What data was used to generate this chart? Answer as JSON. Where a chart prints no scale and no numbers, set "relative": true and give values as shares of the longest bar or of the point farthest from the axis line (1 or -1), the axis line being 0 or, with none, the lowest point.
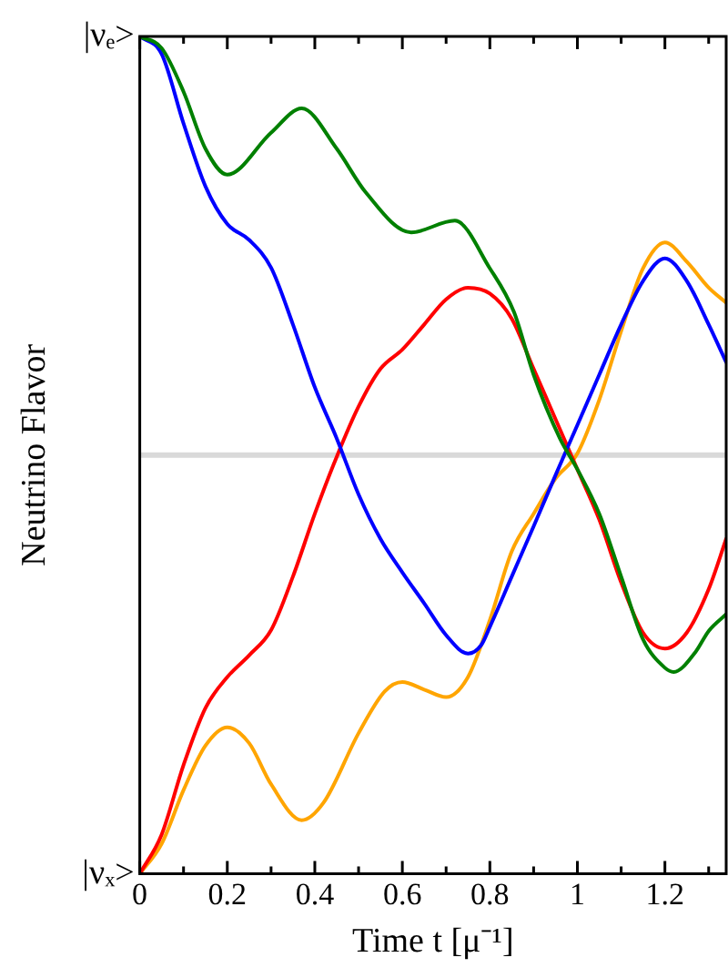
{
  "chart_data": {
    "type": "line",
    "xlabel": "Time t [μ⁻¹]",
    "ylabel": "Neutrino Flavor",
    "xlim": [
      0,
      1.34
    ],
    "relative": true,
    "annotations": [
      {
        "text": "|νₑ>",
        "x": 0,
        "y": 1
      },
      {
        "text": "|νₓ>",
        "x": 0,
        "y": 0
      }
    ],
    "xticks": [
      0,
      {
        "value": 0.1,
        "label": null
      },
      0.2,
      {
        "value": 0.3,
        "label": null
      },
      0.4,
      {
        "value": 0.5,
        "label": null
      },
      0.6,
      {
        "value": 0.7,
        "label": null
      },
      0.8,
      {
        "value": 0.9,
        "label": null
      },
      1,
      {
        "value": 1.1,
        "label": null
      },
      1.2,
      {
        "value": 1.3,
        "label": null
      }
    ],
    "grid": false,
    "legend": false,
    "marker": "none",
    "line_style": "solid",
    "ref_lines": [
      {
        "axis": "y",
        "value": 0.5,
        "color": "#d9d9d9"
      }
    ],
    "series": [
      {
        "color": "#008000",
        "x": [
          0,
          0.05,
          0.1,
          0.15,
          0.2,
          0.3,
          0.37,
          0.45,
          0.516,
          0.62,
          0.72,
          0.8,
          0.855,
          0.9,
          0.96,
          1.0,
          1.05,
          1.1,
          1.15,
          1.2,
          1.22,
          1.27,
          1.3,
          1.34
        ],
        "values": [
          1,
          0.986,
          0.934,
          0.866,
          0.835,
          0.885,
          0.914,
          0.866,
          0.814,
          0.766,
          0.78,
          0.723,
          0.671,
          0.596,
          0.52,
          0.483,
          0.43,
          0.355,
          0.28,
          0.246,
          0.241,
          0.265,
          0.29,
          0.31
        ]
      },
      {
        "color": "#0000ff",
        "x": [
          0,
          0.05,
          0.1,
          0.15,
          0.2,
          0.25,
          0.3,
          0.35,
          0.4,
          0.45,
          0.5,
          0.55,
          0.6,
          0.65,
          0.7,
          0.75,
          0.78,
          0.8,
          0.85,
          0.9,
          0.95,
          1.0,
          1.05,
          1.1,
          1.15,
          1.2,
          1.25,
          1.3,
          1.34
        ],
        "values": [
          1,
          0.979,
          0.896,
          0.821,
          0.776,
          0.757,
          0.724,
          0.656,
          0.581,
          0.52,
          0.453,
          0.4,
          0.36,
          0.323,
          0.285,
          0.263,
          0.273,
          0.295,
          0.355,
          0.415,
          0.476,
          0.536,
          0.596,
          0.656,
          0.708,
          0.735,
          0.708,
          0.656,
          0.611
        ]
      },
      {
        "color": "#ff0000",
        "x": [
          0,
          0.05,
          0.1,
          0.15,
          0.2,
          0.25,
          0.3,
          0.35,
          0.4,
          0.45,
          0.5,
          0.55,
          0.6,
          0.65,
          0.7,
          0.75,
          0.8,
          0.85,
          0.9,
          0.95,
          1.0,
          1.05,
          1.1,
          1.15,
          1.2,
          1.25,
          1.3,
          1.34
        ],
        "values": [
          0,
          0.047,
          0.13,
          0.198,
          0.235,
          0.261,
          0.291,
          0.355,
          0.43,
          0.498,
          0.558,
          0.603,
          0.626,
          0.656,
          0.686,
          0.7,
          0.693,
          0.663,
          0.603,
          0.543,
          0.483,
          0.423,
          0.348,
          0.288,
          0.269,
          0.288,
          0.34,
          0.4
        ]
      },
      {
        "color": "#ffa500",
        "x": [
          0,
          0.05,
          0.1,
          0.15,
          0.2,
          0.25,
          0.3,
          0.37,
          0.42,
          0.5,
          0.56,
          0.6,
          0.65,
          0.7,
          0.75,
          0.8,
          0.85,
          0.9,
          0.95,
          1.0,
          1.05,
          1.1,
          1.15,
          1.2,
          1.25,
          1.3,
          1.34
        ],
        "values": [
          0,
          0.036,
          0.1,
          0.153,
          0.175,
          0.156,
          0.107,
          0.064,
          0.085,
          0.168,
          0.218,
          0.229,
          0.22,
          0.211,
          0.235,
          0.303,
          0.385,
          0.43,
          0.472,
          0.502,
          0.566,
          0.648,
          0.723,
          0.754,
          0.731,
          0.7,
          0.682
        ]
      }
    ]
  }
}
